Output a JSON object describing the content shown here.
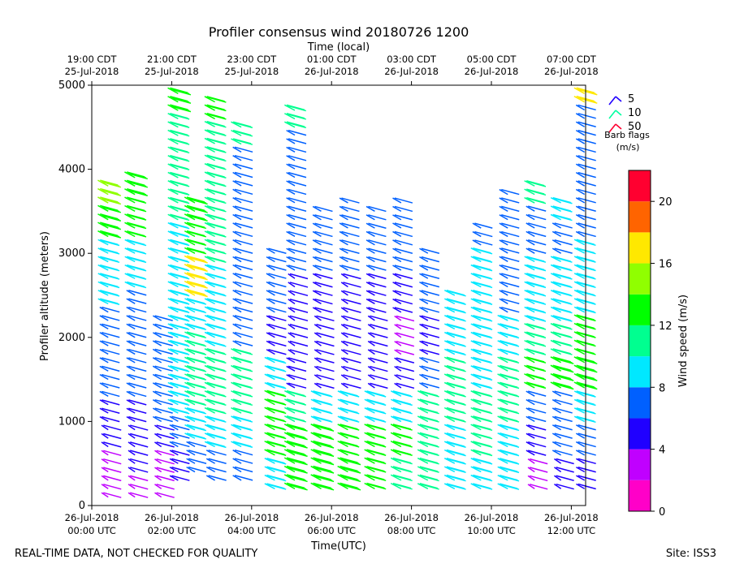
{
  "chart_data": {
    "type": "wind_barb_profile",
    "title": "Profiler consensus wind 20180726 1200",
    "xlabel": "Time(UTC)",
    "ylabel": "Profiler altitude (meters)",
    "top_xlabel": "Time (local)",
    "ylim": [
      0,
      5000
    ],
    "xlim_hours": [
      0,
      12.33
    ],
    "y_ticks": [
      {
        "value": 0,
        "label": "0"
      },
      {
        "value": 1000,
        "label": "1000"
      },
      {
        "value": 2000,
        "label": "2000"
      },
      {
        "value": 3000,
        "label": "3000"
      },
      {
        "value": 4000,
        "label": "4000"
      },
      {
        "value": 5000,
        "label": "5000"
      }
    ],
    "x_ticks": [
      {
        "hour": 0,
        "line1": "26-Jul-2018",
        "line2": "00:00 UTC"
      },
      {
        "hour": 2,
        "line1": "26-Jul-2018",
        "line2": "02:00 UTC"
      },
      {
        "hour": 4,
        "line1": "26-Jul-2018",
        "line2": "04:00 UTC"
      },
      {
        "hour": 6,
        "line1": "26-Jul-2018",
        "line2": "06:00 UTC"
      },
      {
        "hour": 8,
        "line1": "26-Jul-2018",
        "line2": "08:00 UTC"
      },
      {
        "hour": 10,
        "line1": "26-Jul-2018",
        "line2": "10:00 UTC"
      },
      {
        "hour": 12,
        "line1": "26-Jul-2018",
        "line2": "12:00 UTC"
      }
    ],
    "top_ticks": [
      {
        "hour": 0,
        "line1": "19:00 CDT",
        "line2": "25-Jul-2018"
      },
      {
        "hour": 2,
        "line1": "21:00 CDT",
        "line2": "25-Jul-2018"
      },
      {
        "hour": 4,
        "line1": "23:00 CDT",
        "line2": "25-Jul-2018"
      },
      {
        "hour": 6,
        "line1": "01:00 CDT",
        "line2": "26-Jul-2018"
      },
      {
        "hour": 8,
        "line1": "03:00 CDT",
        "line2": "26-Jul-2018"
      },
      {
        "hour": 10,
        "line1": "05:00 CDT",
        "line2": "26-Jul-2018"
      },
      {
        "hour": 12,
        "line1": "07:00 CDT",
        "line2": "26-Jul-2018"
      }
    ],
    "barb_legend": {
      "title_line1": "Barb flags",
      "title_line2": "(m/s)",
      "items": [
        {
          "label": "5",
          "color": "#2000ff",
          "speed": 5
        },
        {
          "label": "10",
          "color": "#00ffa0",
          "speed": 10
        },
        {
          "label": "50",
          "color": "#ff0030",
          "speed": 50
        }
      ]
    },
    "colorbar": {
      "label": "Wind speed (m/s)",
      "range": [
        0,
        22
      ],
      "colors": [
        "#ff00c8",
        "#c000ff",
        "#2000ff",
        "#0060ff",
        "#00e8ff",
        "#00ff90",
        "#00ff00",
        "#90ff00",
        "#ffe800",
        "#ff6400",
        "#ff0030"
      ],
      "ticks": [
        "0",
        "4",
        "8",
        "12",
        "16",
        "20"
      ]
    },
    "series": [
      {
        "name": "column 00:20 UTC",
        "hour": 0.33,
        "alts": [
          100,
          400,
          700,
          1000,
          1300,
          1600,
          2000,
          2400,
          2800,
          3200,
          3600
        ],
        "speeds": [
          3,
          3,
          4,
          5,
          6,
          6,
          7,
          8,
          9,
          13,
          14
        ]
      },
      {
        "name": "column 01:00 UTC",
        "hour": 1.0,
        "alts": [
          100,
          400,
          700,
          1000,
          1300,
          1600,
          2000,
          2600,
          3200,
          3700
        ],
        "speeds": [
          3,
          4,
          4,
          5,
          6,
          6,
          7,
          8,
          12,
          13
        ]
      },
      {
        "name": "column 01:40 UTC",
        "hour": 1.66,
        "alts": [
          100,
          400,
          700,
          1000,
          1300,
          1600,
          2000
        ],
        "speeds": [
          3,
          3,
          4,
          6,
          7,
          7,
          6
        ]
      },
      {
        "name": "column 02:05 UTC",
        "hour": 2.08,
        "alts": [
          300,
          700,
          1100,
          1500,
          2000,
          2800,
          3400,
          3900,
          4300,
          4700
        ],
        "speeds": [
          5,
          7,
          9,
          9,
          9,
          9,
          10,
          10,
          11,
          13
        ]
      },
      {
        "name": "column 02:30 UTC",
        "hour": 2.5,
        "alts": [
          400,
          800,
          1200,
          1600,
          2100,
          2500,
          3000,
          3400
        ],
        "speeds": [
          6,
          8,
          10,
          10,
          9,
          16,
          12,
          13
        ]
      },
      {
        "name": "column 03:00 UTC",
        "hour": 3.0,
        "alts": [
          300,
          700,
          1100,
          1500,
          1900,
          2400,
          2900,
          4600
        ],
        "speeds": [
          6,
          8,
          10,
          11,
          9,
          9,
          10,
          12
        ]
      },
      {
        "name": "column 03:40 UTC",
        "hour": 3.66,
        "alts": [
          300,
          700,
          1100,
          1500,
          1900,
          2900,
          4300
        ],
        "speeds": [
          7,
          9,
          10,
          11,
          7,
          7,
          10
        ]
      },
      {
        "name": "column 04:30 UTC",
        "hour": 4.5,
        "alts": [
          200,
          600,
          1000,
          1400,
          1800,
          2300,
          2800
        ],
        "speeds": [
          9,
          12,
          12,
          9,
          5,
          7,
          6
        ]
      },
      {
        "name": "column 05:00 UTC",
        "hour": 5.0,
        "alts": [
          200,
          600,
          1000,
          1400,
          1800,
          2300,
          2800,
          4500
        ],
        "speeds": [
          13,
          13,
          11,
          5,
          4,
          4,
          6,
          11
        ]
      },
      {
        "name": "column 05:40 UTC",
        "hour": 5.66,
        "alts": [
          200,
          600,
          1000,
          1400,
          1800,
          2300,
          2800,
          3300
        ],
        "speeds": [
          13,
          13,
          9,
          4,
          4,
          5,
          6,
          6
        ]
      },
      {
        "name": "column 06:20 UTC",
        "hour": 6.33,
        "alts": [
          200,
          600,
          1000,
          1400,
          1800,
          2300,
          2800,
          3400
        ],
        "speeds": [
          13,
          12,
          9,
          4,
          4,
          4,
          6,
          6
        ]
      },
      {
        "name": "column 07:00 UTC",
        "hour": 7.0,
        "alts": [
          200,
          600,
          1000,
          1400,
          1800,
          2300,
          2800,
          3300
        ],
        "speeds": [
          12,
          12,
          9,
          4,
          4,
          5,
          6,
          6
        ]
      },
      {
        "name": "column 07:40 UTC",
        "hour": 7.66,
        "alts": [
          200,
          600,
          1000,
          1400,
          1800,
          2300,
          2800,
          3400
        ],
        "speeds": [
          11,
          12,
          9,
          4,
          3,
          5,
          6,
          6
        ]
      },
      {
        "name": "column 08:20 UTC",
        "hour": 8.33,
        "alts": [
          200,
          600,
          1000,
          1400,
          1800,
          2300,
          2800
        ],
        "speeds": [
          10,
          11,
          10,
          7,
          5,
          6,
          6
        ]
      },
      {
        "name": "column 09:00 UTC",
        "hour": 9.0,
        "alts": [
          200,
          600,
          1000,
          1400,
          1800,
          2300
        ],
        "speeds": [
          9,
          9,
          10,
          10,
          8,
          8
        ]
      },
      {
        "name": "column 09:40 UTC",
        "hour": 9.66,
        "alts": [
          200,
          600,
          1000,
          1400,
          1800,
          2300,
          3100
        ],
        "speeds": [
          9,
          10,
          10,
          9,
          8,
          8,
          6
        ]
      },
      {
        "name": "column 10:20 UTC",
        "hour": 10.33,
        "alts": [
          200,
          600,
          1000,
          1400,
          1800,
          2300,
          3100,
          3500
        ],
        "speeds": [
          8,
          9,
          10,
          11,
          9,
          7,
          6,
          7
        ]
      },
      {
        "name": "column 11:00 UTC",
        "hour": 11.0,
        "alts": [
          200,
          600,
          1000,
          1400,
          1800,
          2200,
          3000,
          3600
        ],
        "speeds": [
          3,
          5,
          7,
          12,
          10,
          8,
          7,
          10
        ]
      },
      {
        "name": "column 11:40 UTC",
        "hour": 11.66,
        "alts": [
          200,
          600,
          1000,
          1400,
          1800,
          2200,
          3000,
          3400
        ],
        "speeds": [
          4,
          6,
          7,
          13,
          11,
          8,
          7,
          9
        ]
      },
      {
        "name": "column 12:15 UTC",
        "hour": 12.25,
        "alts": [
          200,
          600,
          1000,
          1400,
          1800,
          2300,
          3200,
          4800
        ],
        "speeds": [
          5,
          6,
          8,
          13,
          12,
          9,
          7,
          16
        ]
      }
    ]
  },
  "footer": {
    "left_note": "REAL-TIME DATA, NOT CHECKED FOR QUALITY",
    "site": "Site: ISS3"
  }
}
